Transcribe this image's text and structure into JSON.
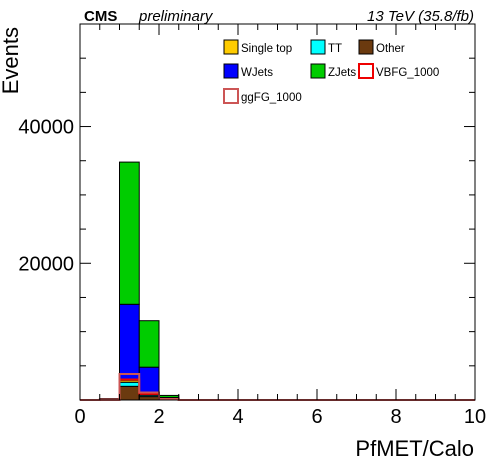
{
  "header": {
    "experiment": "CMS",
    "status": "preliminary",
    "lumi": "13 TeV (35.8/fb)"
  },
  "chart_data": {
    "type": "bar",
    "stacked": true,
    "xlabel": "PfMET/Calo",
    "ylabel": "Events",
    "xlim": [
      0,
      10
    ],
    "ylim": [
      0,
      55000
    ],
    "x_ticks": [
      0,
      2,
      4,
      6,
      8,
      10
    ],
    "x_tick_labels": [
      "0",
      "2",
      "4",
      "6",
      "8",
      "10"
    ],
    "y_ticks": [
      20000,
      40000
    ],
    "y_tick_labels": [
      "20000",
      "40000"
    ],
    "bin_edges": [
      0.0,
      0.5,
      1.0,
      1.5,
      2.0,
      2.5,
      3.0
    ],
    "stack_order": [
      "Other",
      "TT",
      "Single top",
      "WJets",
      "ZJets"
    ],
    "series": [
      {
        "name": "Other",
        "color": "#6b3a0f",
        "values": [
          0,
          0,
          2000,
          500,
          100,
          0
        ]
      },
      {
        "name": "TT",
        "color": "#00ffff",
        "values": [
          0,
          0,
          600,
          200,
          50,
          0
        ]
      },
      {
        "name": "Single top",
        "color": "#ffcc00",
        "values": [
          0,
          0,
          300,
          100,
          20,
          0
        ]
      },
      {
        "name": "WJets",
        "color": "#0000ff",
        "values": [
          0,
          100,
          11100,
          4000,
          200,
          0
        ]
      },
      {
        "name": "ZJets",
        "color": "#00cc00",
        "values": [
          0,
          100,
          20800,
          6800,
          300,
          0
        ]
      }
    ],
    "signals": [
      {
        "name": "VBFG_1000",
        "color": "#ee0000",
        "style": "line",
        "values": [
          0,
          30,
          3000,
          900,
          100,
          0
        ]
      },
      {
        "name": "ggFG_1000",
        "color": "#cc5555",
        "style": "line",
        "values": [
          0,
          40,
          3800,
          1100,
          150,
          0
        ]
      }
    ],
    "legend": [
      {
        "name": "Single top",
        "color": "#ffcc00",
        "style": "fill"
      },
      {
        "name": "TT",
        "color": "#00ffff",
        "style": "fill"
      },
      {
        "name": "Other",
        "color": "#6b3a0f",
        "style": "fill"
      },
      {
        "name": "WJets",
        "color": "#0000ff",
        "style": "fill"
      },
      {
        "name": "ZJets",
        "color": "#00cc00",
        "style": "fill"
      },
      {
        "name": "VBFG_1000",
        "color": "#ee0000",
        "style": "line"
      },
      {
        "name": "ggFG_1000",
        "color": "#cc5555",
        "style": "line"
      }
    ],
    "legend_position": "top-right",
    "grid": false
  }
}
